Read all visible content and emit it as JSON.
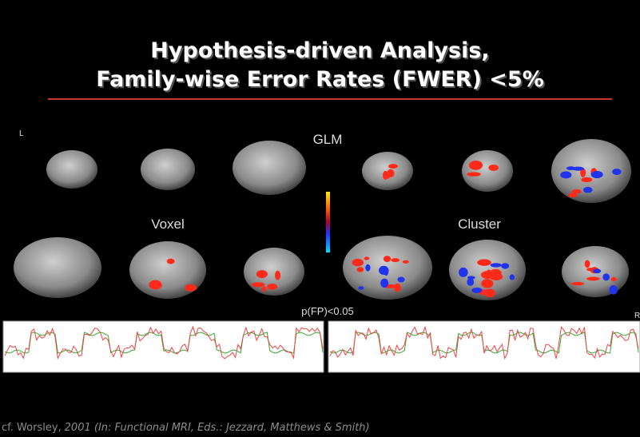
{
  "slide": {
    "title": {
      "line1": "Hypothesis-driven Analysis,",
      "line2": "Family-wise Error Rates (FWER) <5%"
    },
    "figure": {
      "left_marker": "L",
      "right_marker": "R",
      "top_label": "GLM",
      "left_label": "Voxel",
      "right_label": "Cluster",
      "threshold_label": "p(FP)<0.05"
    },
    "citation": {
      "author": "cf. Worsley,",
      "source": "2001 (In: Functional MRI, Eds.: Jezzard, Matthews & Smith)"
    }
  }
}
